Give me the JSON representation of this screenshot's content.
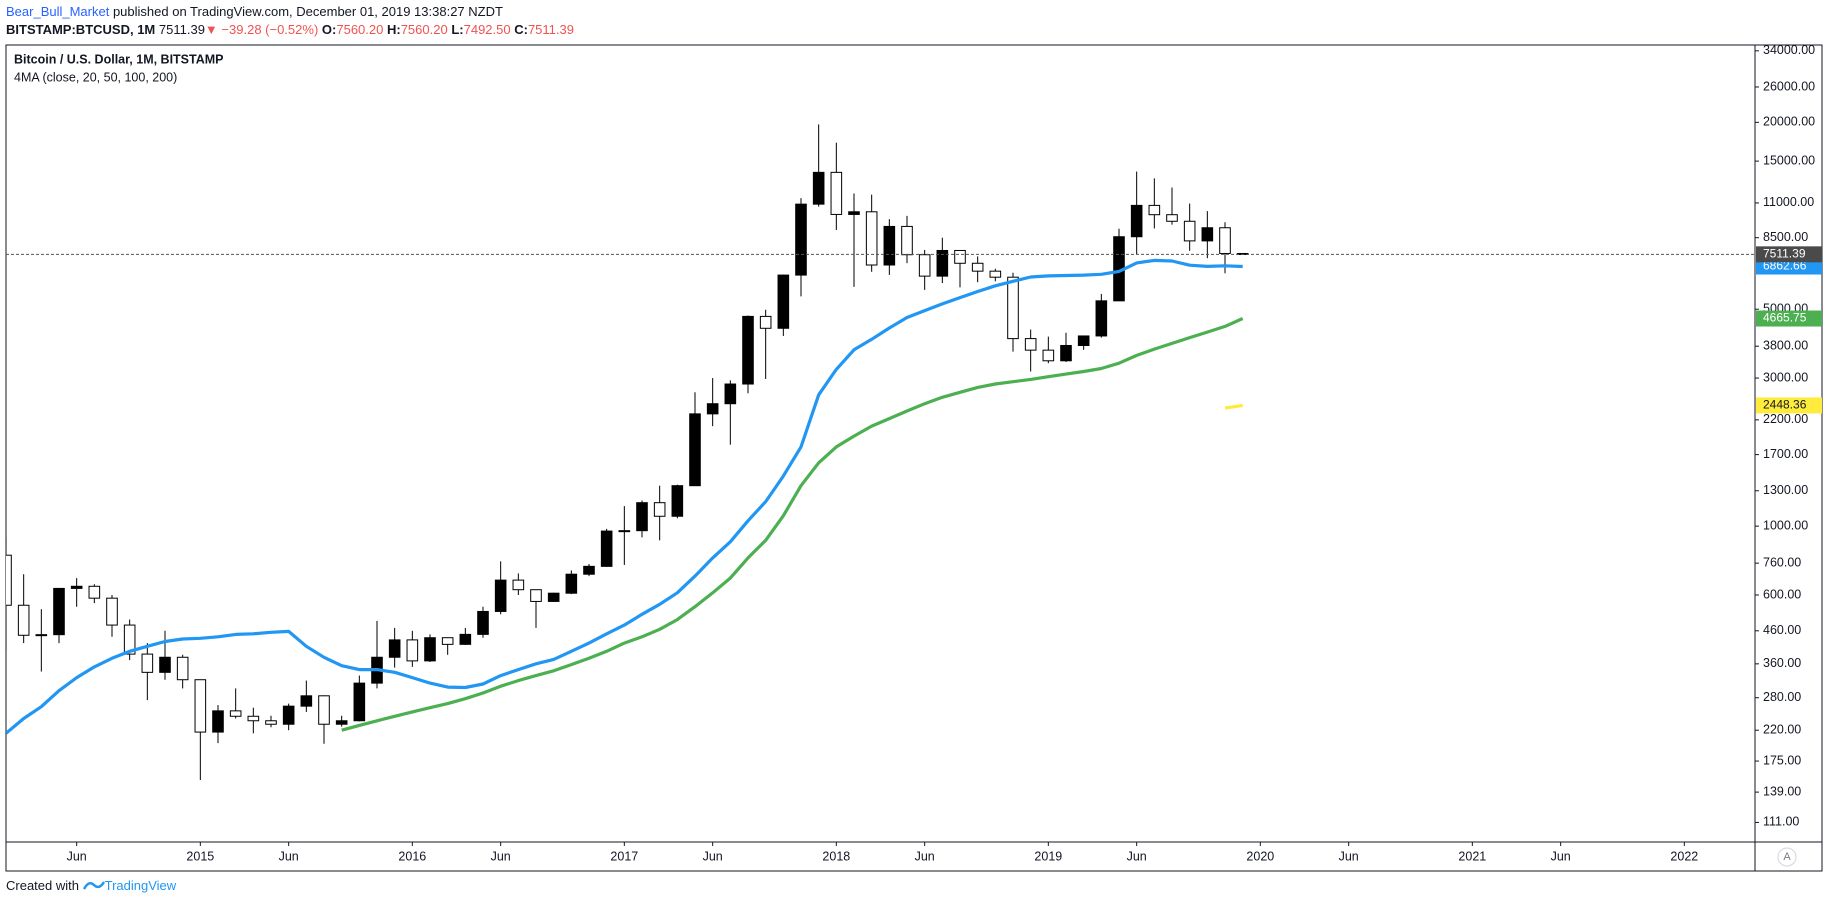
{
  "header": {
    "author": "Bear_Bull_Market",
    "published": " published on TradingView.com, December 01, 2019 13:38:27 NZDT",
    "symbol": "BITSTAMP:BTCUSD, 1M",
    "last": "7511.39",
    "arrow": "▼",
    "change": "−39.28 (−0.52%)",
    "open_label": "O:",
    "open": "7560.20",
    "high_label": "H:",
    "high": "7560.20",
    "low_label": "L:",
    "low": "7492.50",
    "close_label": "C:",
    "close": "7511.39"
  },
  "footer": {
    "created": "Created with",
    "brand": "TradingView",
    "axis_button": "A"
  },
  "chart_data": {
    "type": "candlestick",
    "title": "Bitcoin / U.S. Dollar, 1M, BITSTAMP",
    "subtitle": "4MA (close, 20, 50, 100, 200)",
    "log_scale": true,
    "up_color": "#000000",
    "down_color": "#ffffff",
    "wick_color": "#000000",
    "last_price_color": "#4a4a4a",
    "x": [
      "2014-02",
      "2014-03",
      "2014-04",
      "2014-05",
      "2014-06",
      "2014-07",
      "2014-08",
      "2014-09",
      "2014-10",
      "2014-11",
      "2014-12",
      "2015-01",
      "2015-02",
      "2015-03",
      "2015-04",
      "2015-05",
      "2015-06",
      "2015-07",
      "2015-08",
      "2015-09",
      "2015-10",
      "2015-11",
      "2015-12",
      "2016-01",
      "2016-02",
      "2016-03",
      "2016-04",
      "2016-05",
      "2016-06",
      "2016-07",
      "2016-08",
      "2016-09",
      "2016-10",
      "2016-11",
      "2016-12",
      "2017-01",
      "2017-02",
      "2017-03",
      "2017-04",
      "2017-05",
      "2017-06",
      "2017-07",
      "2017-08",
      "2017-09",
      "2017-10",
      "2017-11",
      "2017-12",
      "2018-01",
      "2018-02",
      "2018-03",
      "2018-04",
      "2018-05",
      "2018-06",
      "2018-07",
      "2018-08",
      "2018-09",
      "2018-10",
      "2018-11",
      "2018-12",
      "2019-01",
      "2019-02",
      "2019-03",
      "2019-04",
      "2019-05",
      "2019-06",
      "2019-07",
      "2019-08",
      "2019-09",
      "2019-10",
      "2019-11",
      "2019-12"
    ],
    "open": [
      806,
      556,
      445,
      447,
      630,
      640,
      586,
      480,
      387,
      338,
      378,
      320,
      217,
      254,
      244,
      236,
      230,
      263,
      284,
      230,
      236,
      312,
      378,
      430,
      368,
      437,
      416,
      448,
      531,
      670,
      624,
      572,
      608,
      700,
      742,
      964,
      967,
      1190,
      1076,
      1350,
      2300,
      2480,
      2870,
      4740,
      4340,
      6440,
      10900,
      13800,
      10100,
      10300,
      6940,
      9240,
      7490,
      6390,
      7730,
      7030,
      6630,
      6340,
      4020,
      3690,
      3410,
      3820,
      4100,
      5320,
      8560,
      10800,
      10080,
      9600,
      8300,
      9150,
      7560.2
    ],
    "high": [
      920,
      700,
      540,
      630,
      680,
      650,
      600,
      500,
      420,
      460,
      385,
      320,
      265,
      300,
      260,
      245,
      268,
      318,
      285,
      245,
      330,
      495,
      470,
      460,
      448,
      438,
      470,
      550,
      770,
      704,
      624,
      610,
      720,
      755,
      980,
      1160,
      1210,
      1350,
      1360,
      2700,
      3000,
      2950,
      4770,
      4980,
      6470,
      11400,
      19700,
      17200,
      11800,
      11700,
      9750,
      9990,
      7760,
      8500,
      7760,
      7400,
      6750,
      6550,
      4300,
      4080,
      4200,
      4110,
      5600,
      9080,
      13880,
      13200,
      12330,
      10950,
      10350,
      9530,
      7560.2
    ],
    "low": [
      400,
      420,
      340,
      420,
      550,
      565,
      440,
      370,
      275,
      320,
      300,
      152,
      200,
      240,
      215,
      225,
      220,
      252,
      199,
      226,
      235,
      300,
      350,
      352,
      365,
      385,
      414,
      437,
      520,
      600,
      470,
      570,
      604,
      690,
      740,
      750,
      920,
      900,
      1060,
      1350,
      2100,
      1830,
      2680,
      2980,
      4100,
      5500,
      10700,
      9000,
      5900,
      6600,
      6450,
      7040,
      5770,
      6070,
      5880,
      6110,
      6150,
      3650,
      3150,
      3350,
      3380,
      3700,
      4050,
      5320,
      7500,
      9100,
      9360,
      7710,
      7300,
      6530,
      7492.5
    ],
    "close": [
      556,
      445,
      447,
      630,
      640,
      586,
      480,
      387,
      338,
      378,
      320,
      217,
      254,
      244,
      236,
      230,
      263,
      284,
      230,
      236,
      312,
      378,
      430,
      368,
      437,
      416,
      448,
      531,
      670,
      624,
      572,
      608,
      700,
      742,
      964,
      967,
      1190,
      1076,
      1350,
      2300,
      2480,
      2870,
      4740,
      4340,
      6440,
      10900,
      13800,
      10100,
      10300,
      6940,
      9240,
      7490,
      6390,
      7730,
      7030,
      6630,
      6340,
      4020,
      3690,
      3410,
      3820,
      4100,
      5320,
      8560,
      10800,
      10080,
      9600,
      8300,
      9150,
      7560.2,
      7511.39
    ],
    "series": [
      {
        "color": "#2196f3",
        "label_text_color": "#ffffff",
        "values": [
          215,
          240,
          262,
          295,
          325,
          352,
          375,
          395,
          410,
          425,
          433,
          435,
          440,
          448,
          450,
          455,
          458,
          410,
          378,
          355,
          345,
          345,
          338,
          325,
          312,
          303,
          302,
          310,
          330,
          345,
          360,
          372,
          395,
          420,
          450,
          480,
          520,
          560,
          610,
          690,
          790,
          890,
          1040,
          1200,
          1450,
          1800,
          2650,
          3200,
          3700,
          4000,
          4350,
          4700,
          4950,
          5200,
          5450,
          5700,
          5950,
          6150,
          6350,
          6400,
          6420,
          6440,
          6480,
          6620,
          7050,
          7180,
          7150,
          6930,
          6870,
          6900,
          6862.66
        ]
      },
      {
        "color": "#4caf50",
        "label_text_color": "#ffffff",
        "values": [
          null,
          null,
          null,
          null,
          null,
          null,
          null,
          null,
          null,
          null,
          null,
          null,
          null,
          null,
          null,
          null,
          null,
          null,
          null,
          220,
          228,
          236,
          244,
          252,
          260,
          268,
          278,
          290,
          305,
          318,
          330,
          342,
          358,
          375,
          395,
          420,
          440,
          465,
          500,
          550,
          610,
          680,
          790,
          900,
          1080,
          1350,
          1600,
          1800,
          1950,
          2100,
          2220,
          2350,
          2480,
          2600,
          2700,
          2800,
          2870,
          2920,
          2970,
          3030,
          3090,
          3150,
          3220,
          3350,
          3550,
          3720,
          3880,
          4050,
          4220,
          4400,
          4665.75
        ]
      },
      {
        "color": "#ffeb3b",
        "label_text_color": "#131722",
        "values": [
          null,
          null,
          null,
          null,
          null,
          null,
          null,
          null,
          null,
          null,
          null,
          null,
          null,
          null,
          null,
          null,
          null,
          null,
          null,
          null,
          null,
          null,
          null,
          null,
          null,
          null,
          null,
          null,
          null,
          null,
          null,
          null,
          null,
          null,
          null,
          null,
          null,
          null,
          null,
          null,
          null,
          null,
          null,
          null,
          null,
          null,
          null,
          null,
          null,
          null,
          null,
          null,
          null,
          null,
          null,
          null,
          null,
          null,
          null,
          null,
          null,
          null,
          null,
          null,
          null,
          null,
          null,
          null,
          null,
          2400,
          2448.36
        ]
      }
    ],
    "xlim": [
      "2014-02",
      "2022-05"
    ],
    "xticks": [
      {
        "value": "2014-06",
        "label": "Jun"
      },
      {
        "value": "2015-01",
        "label": "2015"
      },
      {
        "value": "2015-06",
        "label": "Jun"
      },
      {
        "value": "2016-01",
        "label": "2016"
      },
      {
        "value": "2016-06",
        "label": "Jun"
      },
      {
        "value": "2017-01",
        "label": "2017"
      },
      {
        "value": "2017-06",
        "label": "Jun"
      },
      {
        "value": "2018-01",
        "label": "2018"
      },
      {
        "value": "2018-06",
        "label": "Jun"
      },
      {
        "value": "2019-01",
        "label": "2019"
      },
      {
        "value": "2019-06",
        "label": "Jun"
      },
      {
        "value": "2020-01",
        "label": "2020"
      },
      {
        "value": "2020-06",
        "label": "Jun"
      },
      {
        "value": "2021-01",
        "label": "2021"
      },
      {
        "value": "2021-06",
        "label": "Jun"
      },
      {
        "value": "2022-01",
        "label": "2022"
      }
    ],
    "ylim": [
      96,
      35500
    ],
    "yticks": [
      {
        "value": 34000,
        "label": "34000.00"
      },
      {
        "value": 26000,
        "label": "26000.00"
      },
      {
        "value": 20000,
        "label": "20000.00"
      },
      {
        "value": 15000,
        "label": "15000.00"
      },
      {
        "value": 11000,
        "label": "11000.00"
      },
      {
        "value": 8500,
        "label": "8500.00"
      },
      {
        "value": 5000,
        "label": "5000.00"
      },
      {
        "value": 3800,
        "label": "3800.00"
      },
      {
        "value": 3000,
        "label": "3000.00"
      },
      {
        "value": 2200,
        "label": "2200.00"
      },
      {
        "value": 1700,
        "label": "1700.00"
      },
      {
        "value": 1300,
        "label": "1300.00"
      },
      {
        "value": 1000,
        "label": "1000.00"
      },
      {
        "value": 760,
        "label": "760.00"
      },
      {
        "value": 600,
        "label": "600.00"
      },
      {
        "value": 460,
        "label": "460.00"
      },
      {
        "value": 360,
        "label": "360.00"
      },
      {
        "value": 280,
        "label": "280.00"
      },
      {
        "value": 220,
        "label": "220.00"
      },
      {
        "value": 175,
        "label": "175.00"
      },
      {
        "value": 139,
        "label": "139.00"
      },
      {
        "value": 111,
        "label": "111.00"
      }
    ]
  }
}
